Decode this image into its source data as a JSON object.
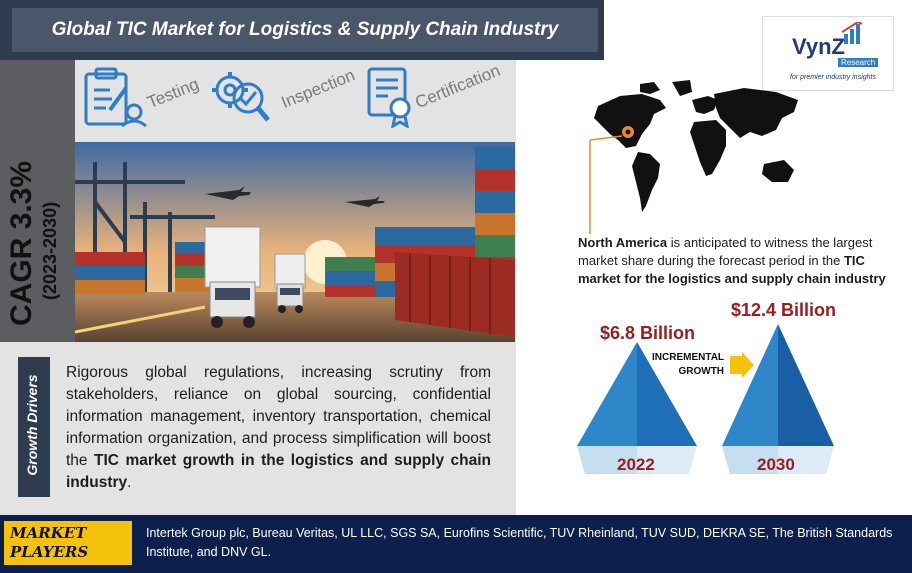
{
  "header": {
    "title": "Global TIC Market for Logistics & Supply Chain Industry"
  },
  "cagr": {
    "label": "CAGR 3.3%",
    "period": "(2023-2030)"
  },
  "services": [
    "Testing",
    "Inspection",
    "Certification"
  ],
  "drivers": {
    "tab_label": "Growth Drivers",
    "text_plain": "Rigorous global regulations, increasing scrutiny from stakeholders, reliance on global sourcing, confidential information management, inventory transportation, chemical information organization, and process simplification will boost the ",
    "text_bold": "TIC market growth in the logistics and supply chain industry",
    "text_end": "."
  },
  "logo": {
    "main": "VynZ",
    "sub": "Research",
    "tagline": "for premier industry insights"
  },
  "region": {
    "name": "North America",
    "text_mid": " is anticipated to witness the largest market share during the forecast period in the ",
    "text_bold": "TIC market for the logistics and supply chain industry"
  },
  "market_values": {
    "value_2022": "$6.8 Billion",
    "value_2030": "$12.4 Billion",
    "year_2022": "2022",
    "year_2030": "2030",
    "incremental_line1": "INCREMENTAL",
    "incremental_line2": "GROWTH"
  },
  "footer": {
    "label_line1": "MARKET",
    "label_line2": "PLAYERS",
    "players": "Intertek Group plc, Bureau Veritas, UL LLC, SGS SA, Eurofins Scientific, TUV Rheinland, TUV SUD, DEKRA SE, The British Standards Institute, and DNV GL."
  },
  "colors": {
    "accent_red": "#9b1c1c",
    "navy": "#0c1f4d",
    "gold": "#f4c20d",
    "pyramid_blue": "#1f6fb8"
  }
}
